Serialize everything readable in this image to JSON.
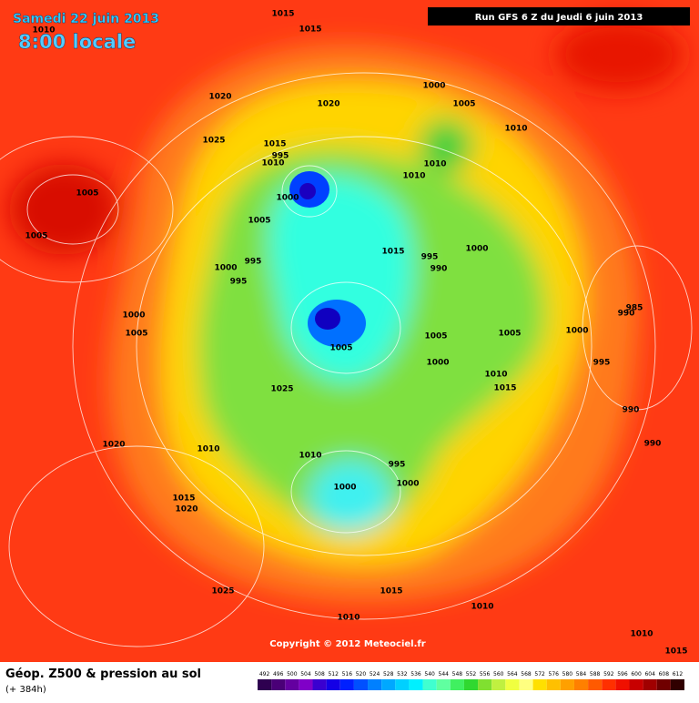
{
  "header": {
    "date": "Samedi 22 juin 2013",
    "time": "8:00 locale",
    "run": "Run GFS 6 Z du Jeudi 6 juin 2013"
  },
  "copyright": "Copyright © 2012 Meteociel.fr",
  "footer": {
    "title": "Géop. Z500 & pression au sol",
    "lead": "(+ 384h)"
  },
  "isobars": [
    1015,
    1015,
    1010,
    1020,
    1020,
    1000,
    1005,
    1010,
    1025,
    1015,
    995,
    1010,
    1010,
    1010,
    1000,
    1005,
    1005,
    1005,
    1000,
    1015,
    995,
    990,
    995,
    1000,
    995,
    985,
    990,
    1000,
    1005,
    1000,
    1005,
    1005,
    1005,
    1000,
    995,
    1010,
    1015,
    1025,
    990,
    990,
    1020,
    1010,
    1010,
    995,
    1000,
    1000,
    1015,
    1020,
    1025,
    1015,
    1010,
    1010,
    1010,
    1015
  ],
  "legend": {
    "values": [
      492,
      496,
      500,
      504,
      508,
      512,
      516,
      520,
      524,
      528,
      532,
      536,
      540,
      544,
      548,
      552,
      556,
      560,
      564,
      568,
      572,
      576,
      580,
      584,
      588,
      592,
      596,
      600,
      604,
      608,
      612
    ],
    "colors": [
      "#2e0050",
      "#4a0077",
      "#6400a0",
      "#8000c8",
      "#3a00d0",
      "#1400e6",
      "#0020ff",
      "#0050ff",
      "#0080ff",
      "#00a8ff",
      "#00d0ff",
      "#00f0ff",
      "#40ffd0",
      "#60ffa0",
      "#40f060",
      "#30d830",
      "#80e030",
      "#c0f040",
      "#f0ff40",
      "#ffff80",
      "#ffe000",
      "#ffc000",
      "#ffa000",
      "#ff8000",
      "#ff5a00",
      "#ff3000",
      "#f01000",
      "#c80000",
      "#a00000",
      "#700000",
      "#300000"
    ]
  }
}
